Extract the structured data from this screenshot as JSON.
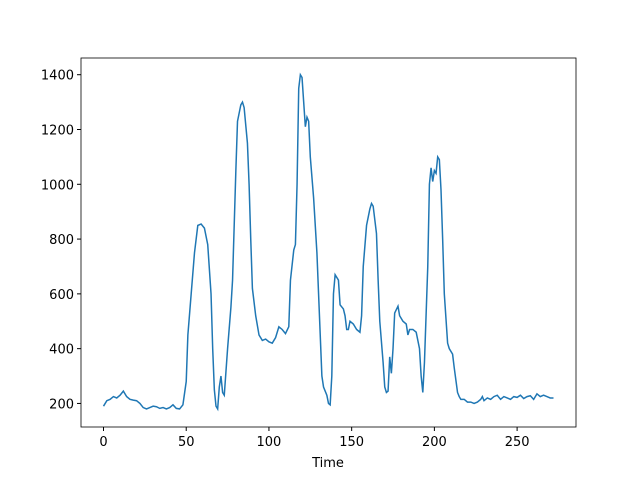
{
  "chart_data": {
    "type": "line",
    "xlabel": "Time",
    "x": [
      0,
      2,
      4,
      6,
      8,
      10,
      12,
      14,
      16,
      18,
      20,
      22,
      24,
      26,
      28,
      30,
      32,
      34,
      36,
      38,
      40,
      42,
      44,
      46,
      48,
      50,
      51,
      53,
      55,
      57,
      59,
      61,
      63,
      65,
      66,
      67,
      68,
      69,
      70,
      71,
      72,
      73,
      75,
      77,
      78,
      80,
      81,
      83,
      84,
      85,
      87,
      88,
      89,
      90,
      92,
      94,
      96,
      98,
      100,
      102,
      104,
      106,
      108,
      110,
      112,
      113,
      115,
      116,
      117,
      118,
      119,
      120,
      121,
      122,
      123,
      124,
      125,
      127,
      129,
      130,
      131,
      132,
      133,
      135,
      136,
      137,
      138,
      139,
      140,
      142,
      143,
      145,
      146,
      147,
      148,
      149,
      151,
      153,
      155,
      156,
      157,
      159,
      161,
      162,
      163,
      165,
      166,
      167,
      169,
      170,
      171,
      172,
      173,
      174,
      175,
      176,
      178,
      179,
      181,
      183,
      184,
      185,
      187,
      189,
      191,
      192,
      193,
      194,
      196,
      197,
      198,
      199,
      200,
      201,
      202,
      203,
      204,
      205,
      206,
      208,
      209,
      211,
      212,
      214,
      215,
      216,
      218,
      220,
      222,
      224,
      226,
      228,
      229,
      230,
      232,
      234,
      236,
      238,
      240,
      242,
      244,
      246,
      248,
      250,
      252,
      254,
      256,
      258,
      260,
      262,
      264,
      266,
      268,
      270,
      272
    ],
    "series": [
      {
        "color": "#1f77b4",
        "values": [
          190,
          210,
          215,
          225,
          220,
          230,
          245,
          225,
          215,
          212,
          210,
          200,
          185,
          180,
          185,
          190,
          188,
          182,
          185,
          180,
          185,
          195,
          182,
          180,
          195,
          280,
          450,
          600,
          750,
          850,
          855,
          840,
          780,
          600,
          400,
          250,
          190,
          180,
          260,
          300,
          240,
          230,
          400,
          550,
          650,
          1050,
          1230,
          1290,
          1300,
          1280,
          1150,
          1000,
          800,
          620,
          520,
          450,
          430,
          435,
          425,
          420,
          440,
          480,
          470,
          455,
          480,
          650,
          760,
          780,
          1000,
          1350,
          1400,
          1390,
          1300,
          1210,
          1245,
          1230,
          1100,
          950,
          750,
          600,
          450,
          300,
          260,
          230,
          200,
          195,
          300,
          600,
          670,
          650,
          560,
          545,
          520,
          470,
          470,
          500,
          490,
          470,
          460,
          520,
          700,
          850,
          910,
          930,
          920,
          820,
          650,
          500,
          350,
          260,
          240,
          245,
          370,
          310,
          400,
          530,
          555,
          520,
          500,
          490,
          450,
          470,
          470,
          460,
          400,
          300,
          240,
          350,
          700,
          1000,
          1060,
          1010,
          1050,
          1040,
          1100,
          1090,
          980,
          800,
          600,
          420,
          400,
          380,
          330,
          240,
          225,
          215,
          215,
          205,
          205,
          200,
          205,
          215,
          225,
          210,
          220,
          215,
          225,
          230,
          215,
          225,
          220,
          215,
          225,
          222,
          230,
          218,
          225,
          228,
          215,
          235,
          225,
          230,
          225,
          220,
          220
        ]
      }
    ],
    "xlim": [
      -13.6,
      285.6
    ],
    "xticks": [
      0,
      50,
      100,
      150,
      200,
      250
    ],
    "ylim": [
      114,
      1461
    ],
    "yticks": [
      200,
      400,
      600,
      800,
      1000,
      1200,
      1400
    ]
  }
}
